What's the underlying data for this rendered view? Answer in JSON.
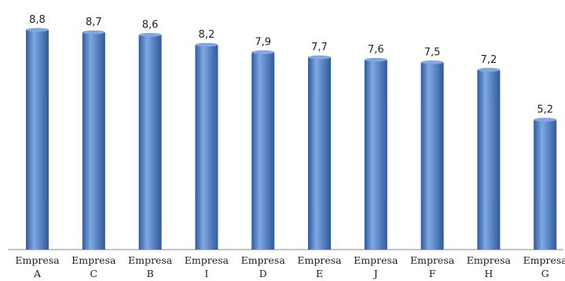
{
  "chart_data": {
    "type": "bar",
    "categories": [
      [
        "Empresa",
        "A"
      ],
      [
        "Empresa",
        "C"
      ],
      [
        "Empresa",
        "B"
      ],
      [
        "Empresa",
        "I"
      ],
      [
        "Empresa",
        "D"
      ],
      [
        "Empresa",
        "E"
      ],
      [
        "Empresa",
        "J"
      ],
      [
        "Empresa",
        "F"
      ],
      [
        "Empresa",
        "H"
      ],
      [
        "Empresa",
        "G"
      ]
    ],
    "values": [
      8.8,
      8.7,
      8.6,
      8.2,
      7.9,
      7.7,
      7.6,
      7.5,
      7.2,
      5.2
    ],
    "value_labels": [
      "8,8",
      "8,7",
      "8,6",
      "8,2",
      "7,9",
      "7,7",
      "7,6",
      "7,5",
      "7,2",
      "5,2"
    ],
    "ylim": [
      0,
      9.2
    ],
    "bar_color": "#4a7bc4",
    "bar_highlight": "#7fa7e4",
    "bar_shadow": "#2f5a9c",
    "grid": false,
    "legend": "none"
  }
}
